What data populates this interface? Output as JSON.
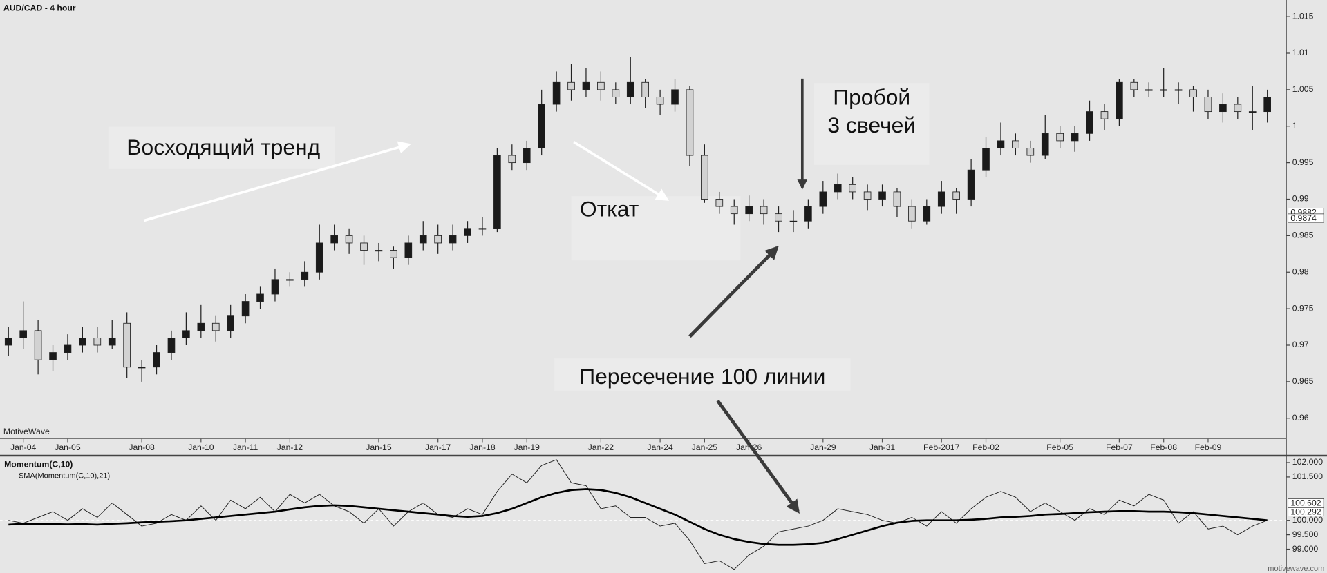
{
  "chart_data": [
    {
      "type": "candlestick",
      "title": "AUD/CAD - 4 hour",
      "watermark": "MotiveWave",
      "categories": [
        null,
        "Jan-04",
        null,
        null,
        "Jan-05",
        null,
        null,
        null,
        null,
        "Jan-08",
        null,
        null,
        null,
        "Jan-10",
        null,
        null,
        "Jan-11",
        null,
        null,
        "Jan-12",
        null,
        null,
        null,
        null,
        null,
        "Jan-15",
        null,
        null,
        null,
        "Jan-17",
        null,
        null,
        "Jan-18",
        null,
        null,
        "Jan-19",
        null,
        null,
        null,
        null,
        "Jan-22",
        null,
        null,
        null,
        "Jan-24",
        null,
        null,
        "Jan-25",
        null,
        null,
        "Jan-26",
        null,
        null,
        null,
        null,
        "Jan-29",
        null,
        null,
        null,
        "Jan-31",
        null,
        null,
        null,
        "Feb-2017",
        null,
        null,
        "Feb-02",
        null,
        null,
        null,
        null,
        "Feb-05",
        null,
        null,
        null,
        "Feb-07",
        null,
        null,
        "Feb-08",
        null,
        null,
        "Feb-09",
        null,
        null,
        null,
        null
      ],
      "open": [
        0.97,
        0.971,
        0.972,
        0.968,
        0.969,
        0.97,
        0.971,
        0.97,
        0.973,
        0.967,
        0.967,
        0.969,
        0.971,
        0.972,
        0.973,
        0.972,
        0.974,
        0.976,
        0.977,
        0.979,
        0.979,
        0.98,
        0.984,
        0.985,
        0.984,
        0.983,
        0.983,
        0.982,
        0.984,
        0.985,
        0.984,
        0.985,
        0.986,
        0.986,
        0.996,
        0.995,
        0.997,
        1.003,
        1.006,
        1.005,
        1.006,
        1.005,
        1.004,
        1.006,
        1.004,
        1.003,
        1.005,
        0.996,
        0.99,
        0.989,
        0.988,
        0.989,
        0.988,
        0.987,
        0.987,
        0.989,
        0.991,
        0.992,
        0.991,
        0.99,
        0.991,
        0.989,
        0.987,
        0.989,
        0.991,
        0.99,
        0.994,
        0.997,
        0.998,
        0.997,
        0.996,
        0.999,
        0.998,
        0.999,
        1.002,
        1.001,
        1.006,
        1.005,
        1.005,
        1.005,
        1.005,
        1.004,
        1.002,
        1.003,
        1.002,
        1.002
      ],
      "high": [
        0.9725,
        0.976,
        0.9735,
        0.97,
        0.9715,
        0.9725,
        0.9725,
        0.9735,
        0.9745,
        0.968,
        0.97,
        0.972,
        0.9745,
        0.9755,
        0.974,
        0.9755,
        0.977,
        0.978,
        0.9805,
        0.98,
        0.9815,
        0.9865,
        0.9865,
        0.986,
        0.985,
        0.984,
        0.9835,
        0.985,
        0.987,
        0.9865,
        0.9865,
        0.987,
        0.9875,
        0.997,
        0.9975,
        0.998,
        1.005,
        1.0075,
        1.0085,
        1.008,
        1.0075,
        1.006,
        1.0095,
        1.0065,
        1.005,
        1.0065,
        1.0055,
        0.9975,
        0.991,
        0.99,
        0.9905,
        0.99,
        0.989,
        0.9885,
        0.99,
        0.9925,
        0.9935,
        0.993,
        0.992,
        0.992,
        0.9915,
        0.99,
        0.99,
        0.9925,
        0.9915,
        0.9955,
        0.9985,
        1.0005,
        0.999,
        0.998,
        1.0015,
        1.0,
        1.0,
        1.0035,
        1.003,
        1.0065,
        1.0065,
        1.006,
        1.008,
        1.006,
        1.0055,
        1.005,
        1.0045,
        1.004,
        1.0055,
        1.005
      ],
      "low": [
        0.9685,
        0.9695,
        0.966,
        0.9665,
        0.968,
        0.969,
        0.969,
        0.9695,
        0.9655,
        0.965,
        0.966,
        0.968,
        0.97,
        0.971,
        0.9705,
        0.971,
        0.973,
        0.975,
        0.976,
        0.978,
        0.978,
        0.979,
        0.983,
        0.9825,
        0.981,
        0.9815,
        0.9805,
        0.981,
        0.983,
        0.9825,
        0.983,
        0.984,
        0.985,
        0.9855,
        0.994,
        0.994,
        0.996,
        1.002,
        1.0035,
        1.004,
        1.0035,
        1.003,
        1.003,
        1.0025,
        1.0015,
        1.002,
        0.9945,
        0.9895,
        0.988,
        0.9865,
        0.987,
        0.9865,
        0.9855,
        0.9855,
        0.986,
        0.988,
        0.99,
        0.99,
        0.9885,
        0.989,
        0.9875,
        0.986,
        0.9865,
        0.988,
        0.988,
        0.989,
        0.993,
        0.996,
        0.996,
        0.995,
        0.9955,
        0.997,
        0.9965,
        0.998,
        0.9995,
        1.0,
        1.004,
        1.004,
        1.004,
        1.003,
        1.002,
        1.001,
        1.0005,
        1.001,
        0.9995,
        1.0005
      ],
      "close": [
        0.971,
        0.972,
        0.968,
        0.969,
        0.97,
        0.971,
        0.97,
        0.971,
        0.967,
        0.967,
        0.969,
        0.971,
        0.972,
        0.973,
        0.972,
        0.974,
        0.976,
        0.977,
        0.979,
        0.979,
        0.98,
        0.984,
        0.985,
        0.984,
        0.983,
        0.983,
        0.982,
        0.984,
        0.985,
        0.984,
        0.985,
        0.986,
        0.986,
        0.996,
        0.995,
        0.997,
        1.003,
        1.006,
        1.005,
        1.006,
        1.005,
        1.004,
        1.006,
        1.004,
        1.003,
        1.005,
        0.996,
        0.99,
        0.989,
        0.988,
        0.989,
        0.988,
        0.987,
        0.987,
        0.989,
        0.991,
        0.992,
        0.991,
        0.99,
        0.991,
        0.989,
        0.987,
        0.989,
        0.991,
        0.99,
        0.994,
        0.997,
        0.998,
        0.997,
        0.996,
        0.999,
        0.998,
        0.999,
        1.002,
        1.001,
        1.006,
        1.005,
        1.005,
        1.005,
        1.005,
        1.004,
        1.002,
        1.003,
        1.002,
        1.002,
        1.004
      ],
      "up_color": "#1a1a1a",
      "down_color": "#d2d2d2",
      "ylim": [
        0.9573,
        1.0167
      ],
      "yticks": [
        0.96,
        0.965,
        0.97,
        0.975,
        0.98,
        0.985,
        0.99,
        0.995,
        1,
        1.005,
        1.01,
        1.015
      ],
      "price_markers": [
        0.9882,
        0.9874
      ],
      "annotations": [
        "Восходящий тренд",
        "Откат",
        "Пробой",
        "3 свечей",
        "Пересечение 100 линии"
      ]
    },
    {
      "type": "line",
      "series": [
        {
          "name": "Momentum(C,10)",
          "color": "#222222",
          "width": 0.8,
          "values": [
            100.0,
            99.9,
            100.1,
            100.3,
            100.0,
            100.4,
            100.1,
            100.6,
            100.2,
            99.8,
            99.9,
            100.2,
            100.0,
            100.5,
            100.0,
            100.7,
            100.4,
            100.8,
            100.3,
            100.9,
            100.6,
            100.9,
            100.5,
            100.3,
            99.9,
            100.4,
            99.8,
            100.3,
            100.6,
            100.2,
            100.1,
            100.4,
            100.2,
            101.0,
            101.6,
            101.3,
            101.9,
            102.1,
            101.3,
            101.2,
            100.4,
            100.5,
            100.1,
            100.1,
            99.8,
            99.9,
            99.3,
            98.5,
            98.6,
            98.3,
            98.8,
            99.1,
            99.6,
            99.7,
            99.8,
            100.0,
            100.4,
            100.3,
            100.2,
            100.0,
            99.9,
            100.1,
            99.8,
            100.3,
            99.9,
            100.4,
            100.8,
            101.0,
            100.8,
            100.3,
            100.6,
            100.3,
            100.0,
            100.4,
            100.2,
            100.7,
            100.5,
            100.9,
            100.7,
            99.9,
            100.3,
            99.7,
            99.8,
            99.5,
            99.8,
            100.0
          ]
        },
        {
          "name": "SMA(Momentum(C,10),21)",
          "color": "#000000",
          "width": 2.2,
          "values": [
            99.85,
            99.88,
            99.88,
            99.87,
            99.86,
            99.87,
            99.85,
            99.88,
            99.9,
            99.93,
            99.95,
            99.97,
            100.0,
            100.05,
            100.1,
            100.15,
            100.2,
            100.25,
            100.3,
            100.38,
            100.45,
            100.5,
            100.52,
            100.5,
            100.45,
            100.4,
            100.35,
            100.3,
            100.25,
            100.2,
            100.15,
            100.12,
            100.15,
            100.25,
            100.4,
            100.6,
            100.8,
            100.95,
            101.05,
            101.08,
            101.05,
            100.95,
            100.8,
            100.6,
            100.4,
            100.2,
            99.95,
            99.7,
            99.5,
            99.35,
            99.25,
            99.18,
            99.15,
            99.15,
            99.17,
            99.22,
            99.35,
            99.5,
            99.65,
            99.8,
            99.92,
            99.98,
            100.0,
            100.0,
            100.0,
            100.02,
            100.05,
            100.1,
            100.12,
            100.15,
            100.2,
            100.22,
            100.25,
            100.28,
            100.3,
            100.32,
            100.32,
            100.3,
            100.3,
            100.28,
            100.25,
            100.2,
            100.15,
            100.1,
            100.05,
            100.0
          ]
        }
      ],
      "ylim": [
        98.2,
        102.18
      ],
      "yticks": [
        {
          "value": 99,
          "label": "99.000"
        },
        {
          "value": 99.5,
          "label": "99.500"
        },
        {
          "value": 100,
          "label": "100.000"
        },
        {
          "value": 101.5,
          "label": "101.500"
        },
        {
          "value": 102,
          "label": "102.000"
        }
      ],
      "reference_line": 100,
      "value_markers": [
        100.602,
        100.292
      ],
      "footer": "motivewave.com"
    }
  ]
}
